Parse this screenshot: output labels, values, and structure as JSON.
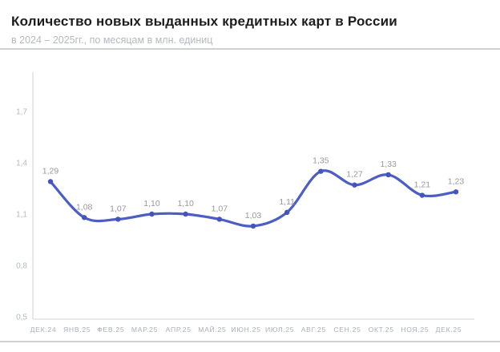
{
  "header": {
    "title": "Количество новых выданных кредитных карт в России",
    "subtitle": "в 2024 – 2025гг., по месяцам в млн. единиц"
  },
  "chart_data": {
    "type": "line",
    "title": "Количество новых выданных кредитных карт в России",
    "subtitle": "в 2024 – 2025гг., по месяцам в млн. единиц",
    "categories": [
      "ДЕК.24",
      "ЯНВ.25",
      "ФЕВ.25",
      "МАР.25",
      "АПР.25",
      "МАЙ.25",
      "ИЮН.25",
      "ИЮЛ.25",
      "АВГ.25",
      "СЕН.25",
      "ОКТ.25",
      "НОЯ.25",
      "ДЕК.25"
    ],
    "values": [
      1.29,
      1.08,
      1.07,
      1.1,
      1.1,
      1.07,
      1.03,
      1.11,
      1.35,
      1.27,
      1.33,
      1.21,
      1.23
    ],
    "point_labels": [
      "1,29",
      "1,08",
      "1,07",
      "1,10",
      "1,10",
      "1,07",
      "1,03",
      "1,11",
      "1,35",
      "1,27",
      "1,33",
      "1,21",
      "1,23"
    ],
    "yticks": [
      0.5,
      0.8,
      1.1,
      1.4,
      1.7
    ],
    "ytick_labels": [
      "0,5",
      "0,8",
      "1,1",
      "1,4",
      "1,7"
    ],
    "ylim": [
      0.5,
      1.93
    ],
    "grid": false,
    "legend": "none",
    "xlabel": "",
    "ylabel": "",
    "colors": {
      "line": "#4c5ec5",
      "marker": "#4353c0",
      "data_label": "#98999c",
      "x_tick_label": "#a9aeba",
      "y_tick_label": "#b4b8c0",
      "axis": "#dcdcdf",
      "title": "#1d1d1f",
      "subtitle": "#b5b8bd",
      "divider": "#c7c8ca"
    }
  }
}
